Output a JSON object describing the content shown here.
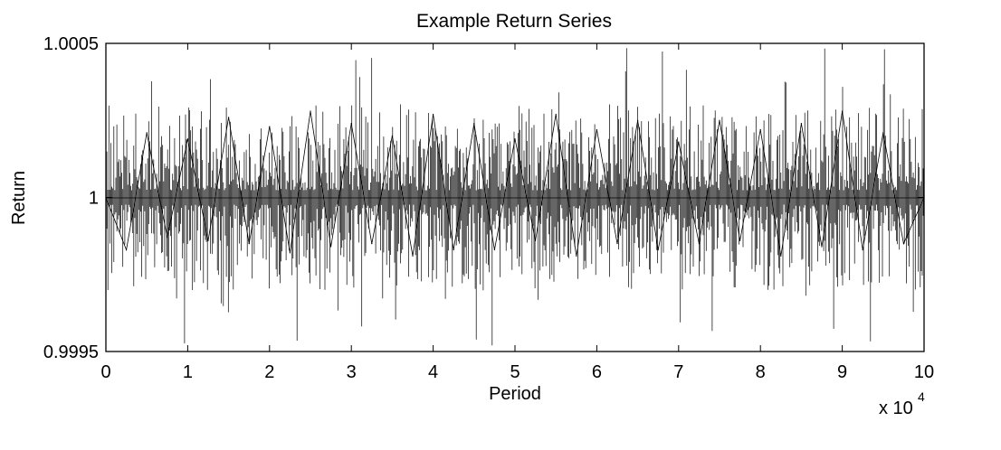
{
  "chart_data": {
    "type": "line",
    "title": "Example Return Series",
    "xlabel": "Period",
    "ylabel": "Return",
    "x_exponent_base": "x 10",
    "x_exponent_power": "4",
    "xlim": [
      0,
      100000
    ],
    "ylim": [
      0.9995,
      1.0005
    ],
    "x_ticks": [
      0,
      10000,
      20000,
      30000,
      40000,
      50000,
      60000,
      70000,
      80000,
      90000,
      100000
    ],
    "x_tick_labels": [
      "0",
      "1",
      "2",
      "3",
      "4",
      "5",
      "6",
      "7",
      "8",
      "9",
      "10"
    ],
    "y_ticks": [
      0.9995,
      1,
      1.0005
    ],
    "y_tick_labels": [
      "0.9995",
      "1",
      "1.0005"
    ],
    "grid": false,
    "line_color": "#000000",
    "series": [
      {
        "x": [
          0,
          2500,
          5000,
          7500,
          10000,
          12500,
          15000,
          17500,
          20000,
          22500,
          25000,
          27500,
          30000,
          32500,
          35000,
          37500,
          40000,
          42500,
          45000,
          47500,
          50000,
          52500,
          55000,
          57500,
          60000,
          62500,
          65000,
          67500,
          70000,
          72500,
          75000,
          77500,
          80000,
          82500,
          85000,
          87500,
          90000,
          92500,
          95000,
          97500,
          100000
        ],
        "values": [
          1.0,
          0.99983,
          1.00021,
          0.99987,
          1.00019,
          0.99986,
          1.00026,
          0.99985,
          1.00023,
          0.99982,
          1.00028,
          0.99984,
          1.00024,
          0.99985,
          1.0002,
          0.99981,
          1.00027,
          0.99983,
          1.00024,
          0.99983,
          1.00019,
          0.99986,
          1.00027,
          0.99981,
          1.00022,
          0.99985,
          1.00025,
          0.99983,
          1.00018,
          0.99985,
          1.00025,
          0.99986,
          1.00022,
          0.99981,
          1.00024,
          0.99984,
          1.00028,
          0.99983,
          1.00021,
          0.99985,
          1.0
        ]
      }
    ]
  }
}
